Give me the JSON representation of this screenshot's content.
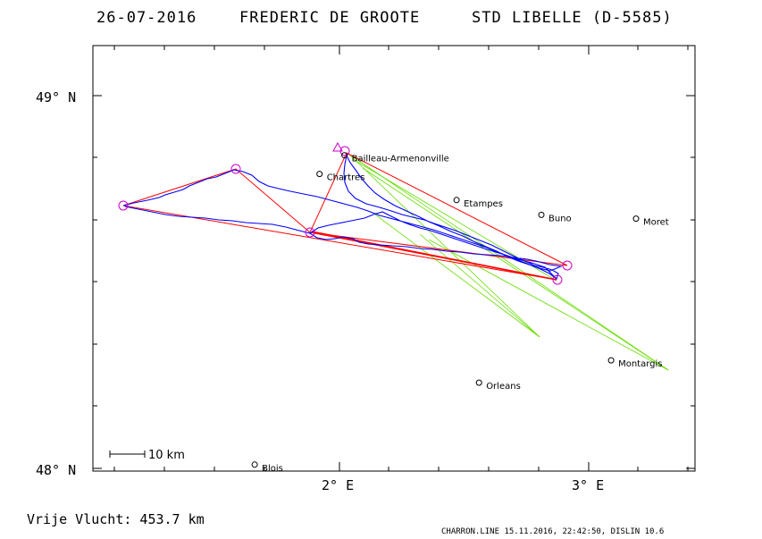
{
  "title": {
    "date": "26-07-2016",
    "pilot": "FREDERIC DE GROOTE",
    "glider": "STD LIBELLE (D-5585)"
  },
  "axes": {
    "lat_top_label": "49° N",
    "lat_bottom_label": "48° N",
    "lon_left_label": "2° E",
    "lon_right_label": "3° E"
  },
  "scale_bar": {
    "label": "10 km"
  },
  "places": [
    {
      "name": "Bailleau-Armenonville",
      "lon": 2.02,
      "lat": 48.84
    },
    {
      "name": "Chartres",
      "lon": 1.92,
      "lat": 48.79
    },
    {
      "name": "Etampes",
      "lon": 2.47,
      "lat": 48.72
    },
    {
      "name": "Buno",
      "lon": 2.81,
      "lat": 48.68
    },
    {
      "name": "Moret",
      "lon": 3.19,
      "lat": 48.67
    },
    {
      "name": "Montargis",
      "lon": 3.09,
      "lat": 48.29
    },
    {
      "name": "Orleans",
      "lon": 2.56,
      "lat": 48.23
    },
    {
      "name": "Blois",
      "lon": 1.66,
      "lat": 48.01
    }
  ],
  "footer": {
    "distance": "Vrije Vlucht:  453.7 km",
    "credit": "CHARRON.LINE 15.11.2016, 22:42:50, DISLIN 10.6"
  },
  "colors": {
    "track": "#0000ff",
    "task_line": "#ff0000",
    "turnpoint": "#cc00cc",
    "glide_line": "#66dd00",
    "frame": "#000000"
  }
}
